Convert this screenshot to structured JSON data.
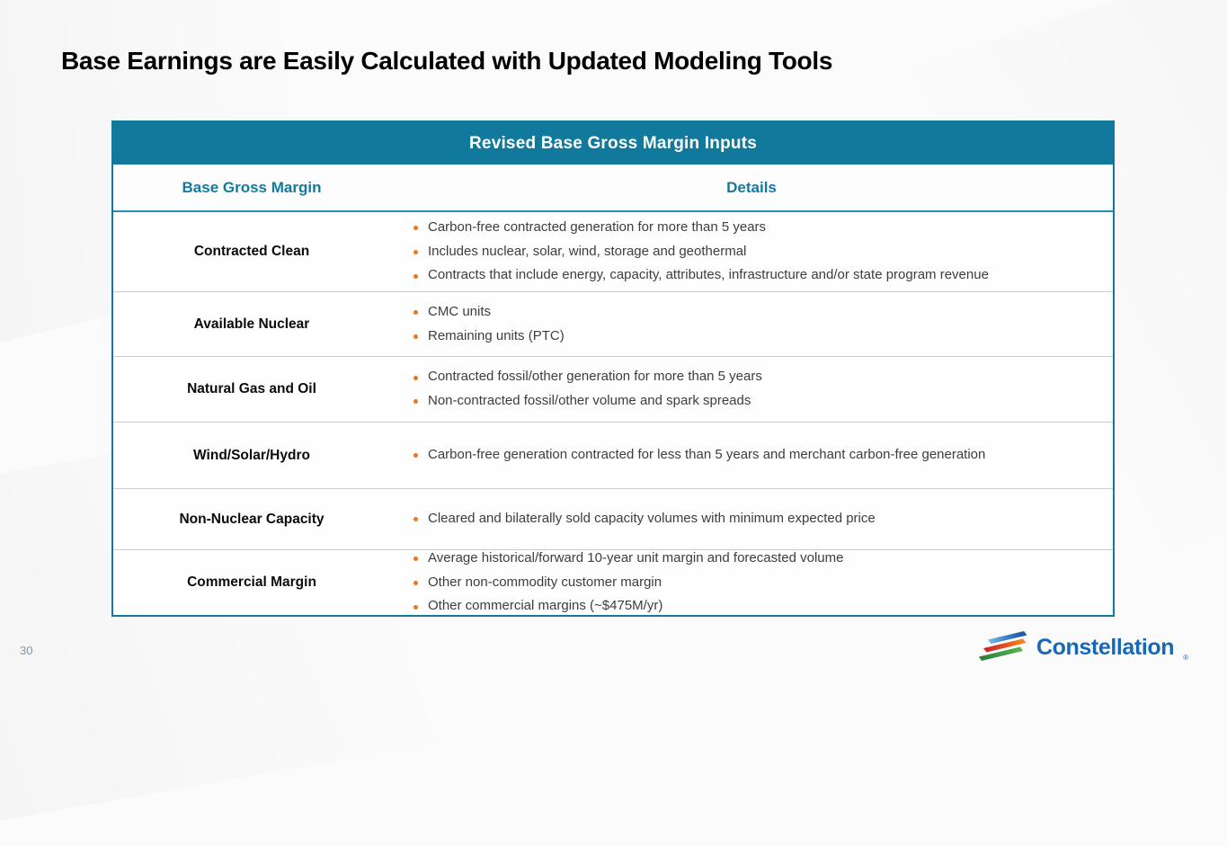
{
  "slide": {
    "title": "Base Earnings are Easily Calculated with Updated Modeling Tools",
    "page_number": "30"
  },
  "table": {
    "title": "Revised Base Gross Margin Inputs",
    "columns": [
      "Base Gross Margin",
      "Details"
    ],
    "rows": [
      {
        "label": "Contracted Clean",
        "details": [
          "Carbon-free contracted generation for more than 5 years",
          "Includes nuclear, solar, wind, storage and geothermal",
          "Contracts that include energy, capacity, attributes, infrastructure and/or state program revenue"
        ]
      },
      {
        "label": "Available Nuclear",
        "details": [
          "CMC units",
          "Remaining units (PTC)"
        ]
      },
      {
        "label": "Natural Gas and Oil",
        "details": [
          "Contracted fossil/other generation for more than 5 years",
          "Non-contracted fossil/other volume and spark spreads"
        ]
      },
      {
        "label": "Wind/Solar/Hydro",
        "details": [
          "Carbon-free generation contracted for less than 5 years and merchant carbon-free generation"
        ]
      },
      {
        "label": "Non-Nuclear Capacity",
        "details": [
          "Cleared and bilaterally sold capacity volumes with minimum expected price"
        ]
      },
      {
        "label": "Commercial Margin",
        "details": [
          "Average historical/forward 10-year unit margin and forecasted volume",
          "Other non-commodity customer margin",
          "Other commercial margins (~$475M/yr)"
        ]
      }
    ]
  },
  "logo": {
    "text": "Constellation",
    "registered": "®"
  },
  "colors": {
    "teal": "#117A9C",
    "teal_line": "#2191B0",
    "column_header_text": "#1179A2",
    "bullet_orange": "#E87722",
    "row_divider": "#C9CDCE",
    "title_color": "#000000",
    "label_text": "#0B0B0B",
    "body_text": "#3D3D3D",
    "page_number_color": "#7E97B0",
    "logo_blue": "#1968B8"
  }
}
